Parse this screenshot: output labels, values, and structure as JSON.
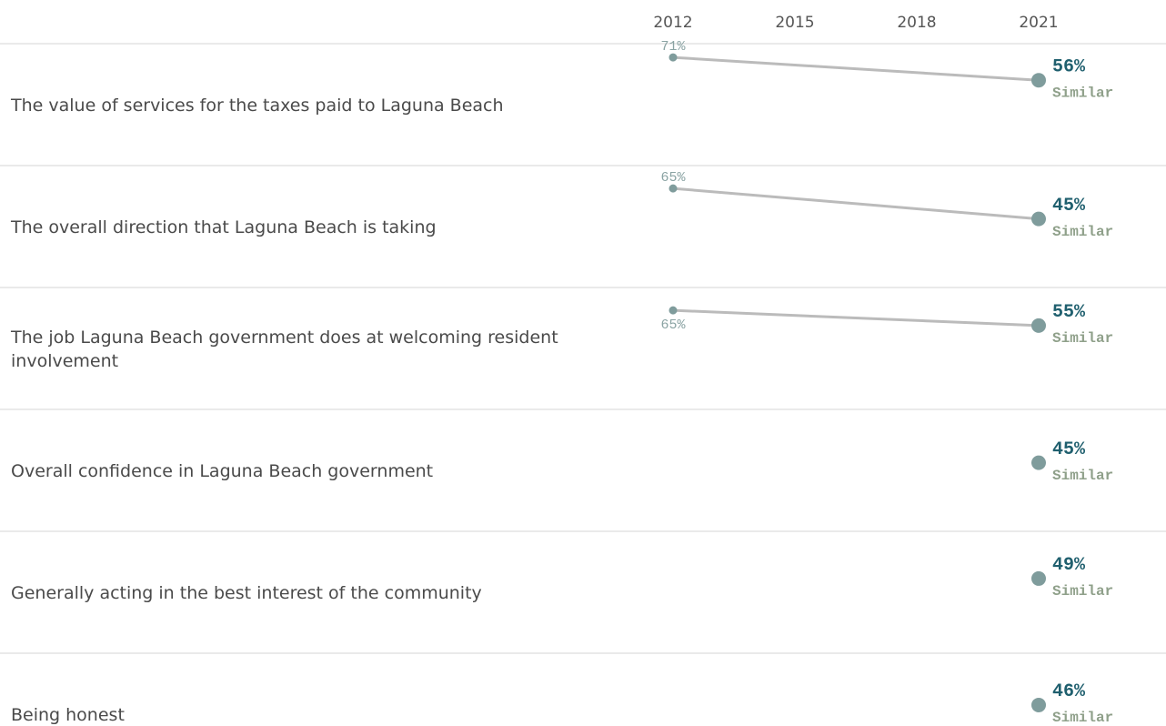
{
  "chart_data": {
    "type": "line",
    "x": [
      2012,
      2021
    ],
    "xlim": [
      2012,
      2021
    ],
    "xticks": [
      2012,
      2015,
      2018,
      2021
    ],
    "ylim": [
      0,
      80
    ],
    "line_color": "#bbbbbb",
    "dot_color": "#7f9c9c",
    "series": [
      {
        "name": "The value of services for the taxes paid to Laguna Beach",
        "values": [
          71,
          56
        ],
        "value_labels": [
          "71%",
          "56%"
        ],
        "comparison": "Similar"
      },
      {
        "name": "The overall direction that Laguna Beach is taking",
        "values": [
          65,
          45
        ],
        "value_labels": [
          "65%",
          "45%"
        ],
        "comparison": "Similar"
      },
      {
        "name": "The job Laguna Beach government does at welcoming resident involvement",
        "values": [
          65,
          55
        ],
        "value_labels": [
          "65%",
          "55%"
        ],
        "comparison": "Similar"
      },
      {
        "name": "Overall confidence in Laguna Beach government",
        "values": [
          null,
          45
        ],
        "value_labels": [
          null,
          "45%"
        ],
        "comparison": "Similar"
      },
      {
        "name": "Generally acting in the best interest of the community",
        "values": [
          null,
          49
        ],
        "value_labels": [
          null,
          "49%"
        ],
        "comparison": "Similar"
      },
      {
        "name": "Being honest",
        "values": [
          null,
          46
        ],
        "value_labels": [
          null,
          "46%"
        ],
        "comparison": "Similar"
      }
    ]
  }
}
